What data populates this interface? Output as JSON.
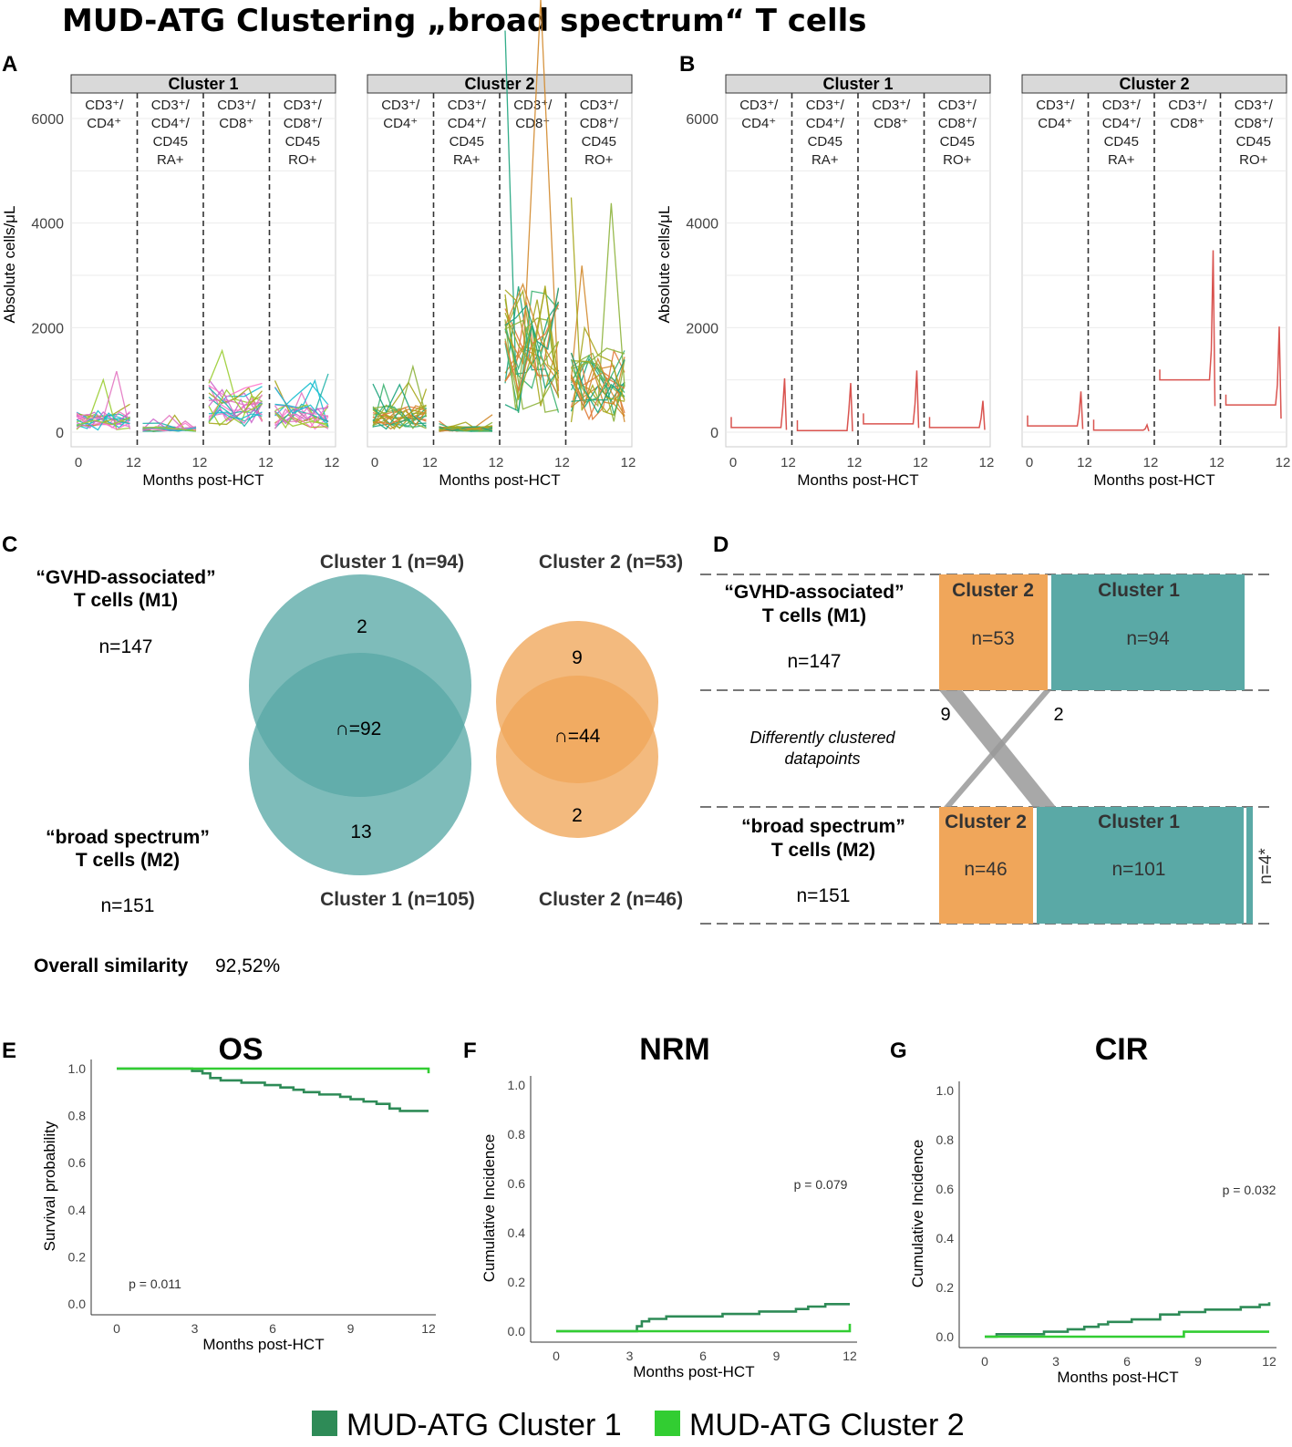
{
  "title": "MUD-ATG Clustering „broad spectrum“ T cells",
  "panel_letters": [
    "A",
    "B",
    "C",
    "D",
    "E",
    "F",
    "G"
  ],
  "colors": {
    "teal": "#5aa9a6",
    "teal_light": "#6fb4b2",
    "orange": "#f0a65a",
    "orange_light": "#f2b072",
    "dark_green": "#2e8b57",
    "light_green": "#32cd32",
    "strip_bg": "#d9d9d9",
    "red": "#d9534f"
  },
  "trajectory_panels": {
    "y_label": "Absolute cells/μL",
    "x_label": "Months post-HCT",
    "y_ticks": [
      0,
      2000,
      4000,
      6000
    ],
    "x_ticks": [
      "0",
      "12",
      "12",
      "12",
      "12"
    ],
    "subsets": [
      [
        "CD3⁺/",
        "CD4⁺"
      ],
      [
        "CD3⁺/",
        "CD4⁺/",
        "CD45",
        "RA+"
      ],
      [
        "CD3⁺/",
        "CD8⁺"
      ],
      [
        "CD3⁺/",
        "CD8⁺/",
        "CD45",
        "RO+"
      ]
    ],
    "A": {
      "clusters": [
        "Cluster 1",
        "Cluster 2"
      ]
    },
    "B": {
      "clusters": [
        "Cluster 1",
        "Cluster 2"
      ]
    }
  },
  "venn": {
    "top_label_c1": "Cluster 1 (n=94)",
    "top_label_c2": "Cluster 2 (n=53)",
    "bottom_label_c1": "Cluster 1 (n=105)",
    "bottom_label_c2": "Cluster 2 (n=46)",
    "c1_top": "2",
    "c1_overlap": "∩=92",
    "c1_bottom": "13",
    "c2_top": "9",
    "c2_overlap": "∩=44",
    "c2_bottom": "2",
    "m1_label": [
      "“GVHD-associated”",
      "T cells (M1)"
    ],
    "m1_n": "n=147",
    "m2_label": [
      "“broad spectrum”",
      "T cells (M2)"
    ],
    "m2_n": "n=151",
    "similarity_label": "Overall similarity",
    "similarity_value": "92,52%"
  },
  "alluvial": {
    "m1_label": [
      "“GVHD-associated”",
      "T cells (M1)"
    ],
    "m1_n": "n=147",
    "m2_label": [
      "“broad spectrum”",
      "T cells (M2)"
    ],
    "m2_n": "n=151",
    "middle_label": [
      "Differently clustered",
      "datapoints"
    ],
    "flow_left": "9",
    "flow_right": "2",
    "top_c2": "Cluster 2",
    "top_c2_n": "n=53",
    "top_c1": "Cluster 1",
    "top_c1_n": "n=94",
    "bottom_c2": "Cluster 2",
    "bottom_c2_n": "n=46",
    "bottom_c1": "Cluster 1",
    "bottom_c1_n": "n=101",
    "extra": "n=4*"
  },
  "chart_data": [
    {
      "panel": "E",
      "type": "line",
      "title": "OS",
      "xlabel": "Months post-HCT",
      "ylabel": "Survival probability",
      "xlim": [
        0,
        12
      ],
      "ylim": [
        0,
        1
      ],
      "x_ticks": [
        0,
        3,
        6,
        9,
        12
      ],
      "y_ticks": [
        "0.0",
        "0.2",
        "0.4",
        "0.6",
        "0.8",
        "1.0"
      ],
      "annotation": "p = 0.011",
      "series": [
        {
          "name": "MUD-ATG Cluster 1",
          "step": [
            [
              0,
              1.0
            ],
            [
              2.7,
              1.0
            ],
            [
              2.9,
              0.99
            ],
            [
              3.3,
              0.98
            ],
            [
              3.6,
              0.96
            ],
            [
              4.0,
              0.95
            ],
            [
              4.8,
              0.94
            ],
            [
              5.7,
              0.93
            ],
            [
              6.3,
              0.92
            ],
            [
              6.8,
              0.91
            ],
            [
              7.2,
              0.9
            ],
            [
              7.8,
              0.89
            ],
            [
              8.6,
              0.88
            ],
            [
              9.0,
              0.87
            ],
            [
              9.5,
              0.86
            ],
            [
              10.0,
              0.85
            ],
            [
              10.5,
              0.83
            ],
            [
              10.9,
              0.82
            ],
            [
              12,
              0.82
            ]
          ]
        },
        {
          "name": "MUD-ATG Cluster 2",
          "step": [
            [
              0,
              1.0
            ],
            [
              11.95,
              1.0
            ],
            [
              12,
              0.98
            ]
          ]
        }
      ]
    },
    {
      "panel": "F",
      "type": "line",
      "title": "NRM",
      "xlabel": "Months post-HCT",
      "ylabel": "Cumulative Incidence",
      "xlim": [
        0,
        12
      ],
      "ylim": [
        0,
        1
      ],
      "x_ticks": [
        0,
        3,
        6,
        9,
        12
      ],
      "y_ticks": [
        "0.0",
        "0.2",
        "0.4",
        "0.6",
        "0.8",
        "1.0"
      ],
      "annotation": "p = 0.079",
      "series": [
        {
          "name": "MUD-ATG Cluster 1",
          "step": [
            [
              0,
              0.0
            ],
            [
              2.7,
              0.0
            ],
            [
              3.3,
              0.02
            ],
            [
              3.5,
              0.04
            ],
            [
              3.8,
              0.05
            ],
            [
              4.5,
              0.06
            ],
            [
              6.8,
              0.07
            ],
            [
              8.3,
              0.08
            ],
            [
              9.8,
              0.09
            ],
            [
              10.3,
              0.1
            ],
            [
              11,
              0.11
            ],
            [
              12,
              0.11
            ]
          ]
        },
        {
          "name": "MUD-ATG Cluster 2",
          "step": [
            [
              0,
              0.0
            ],
            [
              11.95,
              0.0
            ],
            [
              12,
              0.03
            ]
          ]
        }
      ]
    },
    {
      "panel": "G",
      "type": "line",
      "title": "CIR",
      "xlabel": "Months post-HCT",
      "ylabel": "Cumulative Incidence",
      "xlim": [
        0,
        12
      ],
      "ylim": [
        0,
        1
      ],
      "x_ticks": [
        0,
        3,
        6,
        9,
        12
      ],
      "y_ticks": [
        "0.0",
        "0.2",
        "0.4",
        "0.6",
        "0.8",
        "1.0"
      ],
      "annotation": "p = 0.032",
      "series": [
        {
          "name": "MUD-ATG Cluster 1",
          "step": [
            [
              0,
              0.0
            ],
            [
              0.5,
              0.01
            ],
            [
              2.5,
              0.02
            ],
            [
              3.5,
              0.03
            ],
            [
              4.2,
              0.04
            ],
            [
              4.8,
              0.05
            ],
            [
              5.2,
              0.06
            ],
            [
              6.2,
              0.07
            ],
            [
              7.4,
              0.09
            ],
            [
              8.2,
              0.1
            ],
            [
              9.3,
              0.11
            ],
            [
              10.8,
              0.12
            ],
            [
              11.6,
              0.13
            ],
            [
              12,
              0.14
            ]
          ]
        },
        {
          "name": "MUD-ATG Cluster 2",
          "step": [
            [
              0,
              0.0
            ],
            [
              8.3,
              0.0
            ],
            [
              8.4,
              0.02
            ],
            [
              12,
              0.02
            ]
          ]
        }
      ]
    }
  ],
  "legend": [
    "MUD-ATG Cluster 1",
    "MUD-ATG Cluster 2"
  ]
}
